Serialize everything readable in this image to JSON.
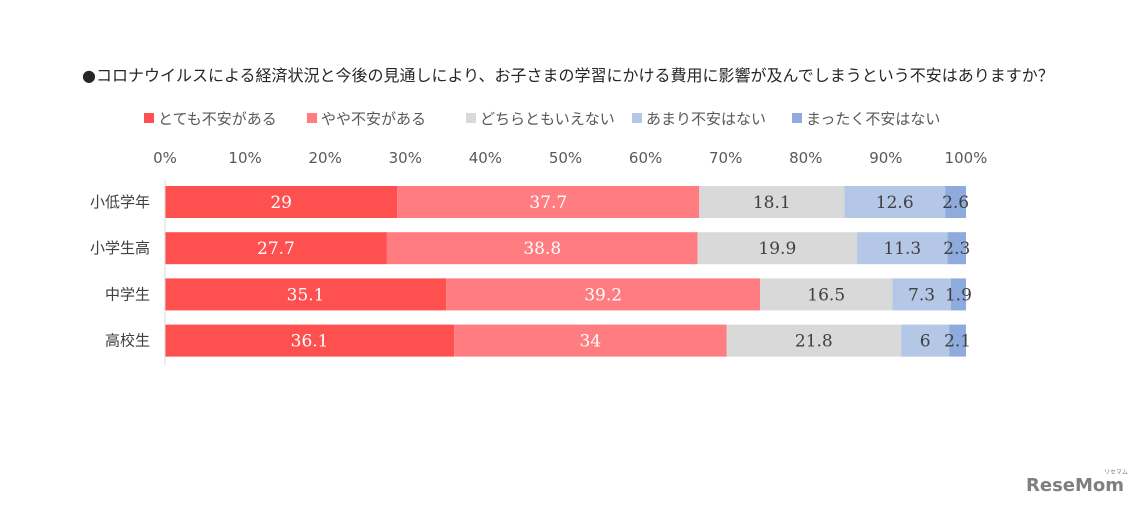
{
  "colors": {
    "series": [
      "#ff5050",
      "#ff7c80",
      "#d9d9d9",
      "#b4c7e7",
      "#8faadc"
    ],
    "label_on_dark": "#ffffff",
    "label_on_light": "#404040",
    "axis": "#d9d9d9"
  },
  "logo": {
    "text": "ReseMom",
    "small_text": "リセマム"
  },
  "chart_data": {
    "type": "bar",
    "orientation": "horizontal",
    "stacked": "percent",
    "title": "●コロナウイルスによる経済状況と今後の見通しにより、お子さまの学習にかける費用に影響が及んでしまうという不安はありますか？",
    "categories": [
      "小低学年",
      "小学生高",
      "中学生",
      "高校生"
    ],
    "series": [
      {
        "name": "とても不安がある",
        "values": [
          29,
          27.7,
          35.1,
          36.1
        ]
      },
      {
        "name": "やや不安がある",
        "values": [
          37.7,
          38.8,
          39.2,
          34
        ]
      },
      {
        "name": "どちらともいえない",
        "values": [
          18.1,
          19.9,
          16.5,
          21.8
        ]
      },
      {
        "name": "あまり不安はない",
        "values": [
          12.6,
          11.3,
          7.3,
          6
        ]
      },
      {
        "name": "まったく不安はない",
        "values": [
          2.6,
          2.3,
          1.9,
          2.1
        ]
      }
    ],
    "xlim": [
      0,
      100
    ],
    "x_ticks": [
      "0%",
      "10%",
      "20%",
      "30%",
      "40%",
      "50%",
      "60%",
      "70%",
      "80%",
      "90%",
      "100%"
    ],
    "legend": "top",
    "grid": false
  }
}
